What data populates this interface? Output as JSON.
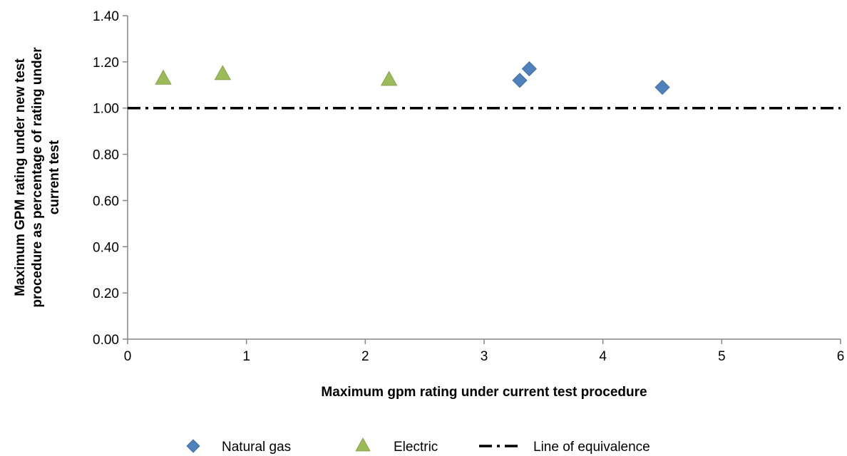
{
  "chart_data": {
    "type": "scatter",
    "title": "",
    "xlabel": "Maximum gpm rating under current test procedure",
    "ylabel_lines": [
      "Maximum GPM rating under new test",
      "procedure as percentage of rating under",
      "current test"
    ],
    "xlim": [
      0,
      6
    ],
    "ylim": [
      0,
      1.4
    ],
    "x_ticks": [
      "0",
      "1",
      "2",
      "3",
      "4",
      "5",
      "6"
    ],
    "y_ticks": [
      "0.00",
      "0.20",
      "0.40",
      "0.60",
      "0.80",
      "1.00",
      "1.20",
      "1.40"
    ],
    "grid": false,
    "legend_position": "bottom",
    "series": [
      {
        "name": "Natural gas",
        "marker": "diamond",
        "color": "#4F81BD",
        "x": [
          3.3,
          3.38,
          4.5
        ],
        "y": [
          1.12,
          1.17,
          1.09
        ]
      },
      {
        "name": "Electric",
        "marker": "triangle",
        "color": "#9BBB59",
        "x": [
          0.3,
          0.8,
          2.2
        ],
        "y": [
          1.13,
          1.15,
          1.125
        ]
      },
      {
        "name": "Line of equivalence",
        "marker": "line",
        "line_style": "dash-dot",
        "color": "#000000",
        "x": [
          0,
          6
        ],
        "y": [
          1.0,
          1.0
        ]
      }
    ]
  }
}
